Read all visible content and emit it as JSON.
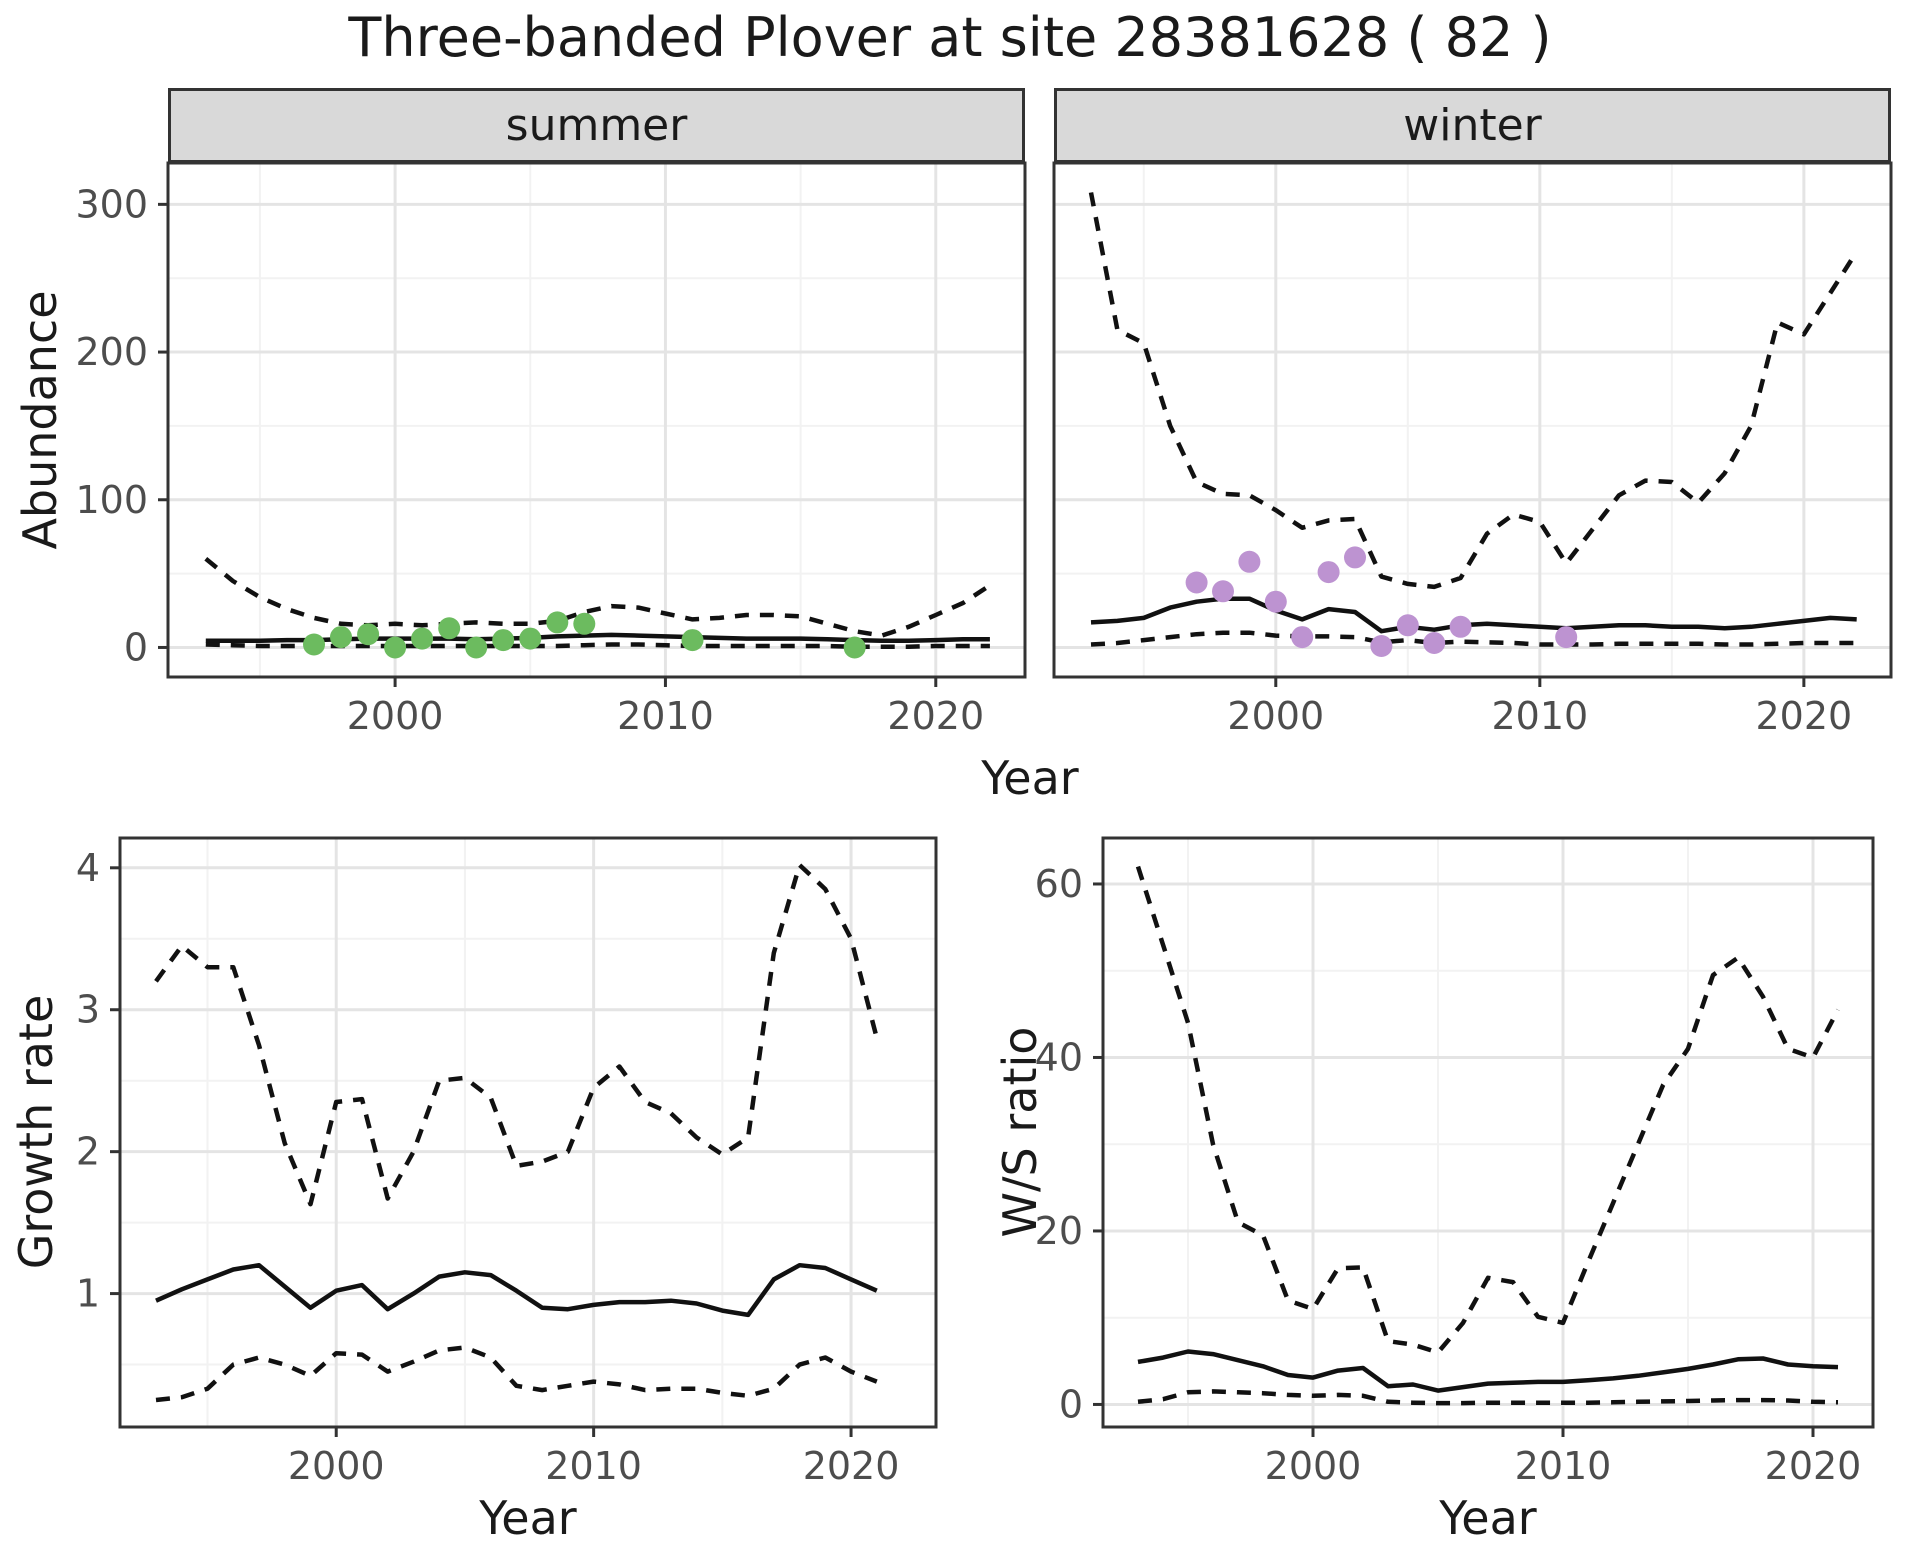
{
  "title": "Three-banded Plover at site 28381628 ( 82 )",
  "facets": {
    "summer": "summer",
    "winter": "winter"
  },
  "axes": {
    "abundance_ylabel": "Abundance",
    "top_xlabel": "Year",
    "growth_ylabel": "Growth rate",
    "growth_xlabel": "Year",
    "ws_ylabel": "W/S ratio",
    "ws_xlabel": "Year"
  },
  "style": {
    "accent_green": "#6cbb5f",
    "accent_purple": "#bd93d1",
    "line_color": "#111111",
    "grid_major": "#e4e4e4",
    "grid_minor": "#f2f2f2",
    "panel_border": "#333333",
    "strip_bg": "#d9d9d9",
    "tick_label_color": "#4d4d4d",
    "tick_mark_color": "#333333"
  },
  "chart_data": [
    {
      "id": "abundance-summer",
      "type": "line",
      "facet": "summer",
      "xlabel": "Year",
      "ylabel": "Abundance",
      "x_domain": [
        1991.6,
        2023.3
      ],
      "y_domain": [
        -20,
        328
      ],
      "x_ticks": [
        2000,
        2010,
        2020
      ],
      "x_minor": [
        1995,
        2005,
        2015
      ],
      "y_ticks": [
        0,
        100,
        200,
        300
      ],
      "y_minor": [
        50,
        150,
        250
      ],
      "show_y_labels": true,
      "grid": true,
      "years": [
        1993,
        1994,
        1995,
        1996,
        1997,
        1998,
        1999,
        2000,
        2001,
        2002,
        2003,
        2004,
        2005,
        2006,
        2007,
        2008,
        2009,
        2010,
        2011,
        2012,
        2013,
        2014,
        2015,
        2016,
        2017,
        2018,
        2019,
        2020,
        2021,
        2022
      ],
      "series": [
        {
          "name": "upper-95ci",
          "style": "dashed",
          "values": [
            60,
            45,
            34,
            26,
            20,
            16,
            15,
            16,
            15,
            16,
            17,
            16,
            16,
            18,
            24,
            28,
            27,
            23,
            19,
            20,
            22,
            22,
            21,
            16,
            11,
            8,
            14,
            22,
            30,
            42
          ]
        },
        {
          "name": "fitted-abundance",
          "style": "solid",
          "values": [
            4.5,
            4.5,
            4.5,
            5,
            5,
            5.5,
            6,
            6,
            6,
            6,
            5.5,
            6,
            6.5,
            7.5,
            8,
            8.5,
            8,
            7.5,
            7,
            6.5,
            6,
            6,
            6,
            5.5,
            5,
            4.5,
            4.5,
            5,
            5.5,
            5.5
          ]
        },
        {
          "name": "lower-95ci",
          "style": "dashed",
          "values": [
            2,
            1.5,
            1,
            1,
            1,
            1,
            1,
            1,
            1,
            1,
            1,
            1,
            1,
            1,
            1.5,
            2,
            2,
            1.5,
            1,
            1,
            1,
            1,
            1,
            1,
            0.5,
            0.5,
            0.5,
            1,
            1,
            1
          ]
        }
      ],
      "observations": {
        "name": "summer-counts",
        "color": "#6cbb5f",
        "points": [
          [
            1997,
            2
          ],
          [
            1998,
            7
          ],
          [
            1999,
            9
          ],
          [
            2000,
            0
          ],
          [
            2001,
            6
          ],
          [
            2002,
            13
          ],
          [
            2003,
            0
          ],
          [
            2004,
            5
          ],
          [
            2005,
            6
          ],
          [
            2006,
            17
          ],
          [
            2007,
            16
          ],
          [
            2011,
            5
          ],
          [
            2017,
            0
          ]
        ]
      }
    },
    {
      "id": "abundance-winter",
      "type": "line",
      "facet": "winter",
      "xlabel": "Year",
      "ylabel": "Abundance",
      "x_domain": [
        1991.6,
        2023.3
      ],
      "y_domain": [
        -20,
        328
      ],
      "x_ticks": [
        2000,
        2010,
        2020
      ],
      "x_minor": [
        1995,
        2005,
        2015
      ],
      "y_ticks": [
        0,
        100,
        200,
        300
      ],
      "y_minor": [
        50,
        150,
        250
      ],
      "show_y_labels": false,
      "grid": true,
      "years": [
        1993,
        1994,
        1995,
        1996,
        1997,
        1998,
        1999,
        2000,
        2001,
        2002,
        2003,
        2004,
        2005,
        2006,
        2007,
        2008,
        2009,
        2010,
        2011,
        2012,
        2013,
        2014,
        2015,
        2016,
        2017,
        2018,
        2019,
        2020,
        2021,
        2022
      ],
      "series": [
        {
          "name": "upper-95ci",
          "style": "dashed",
          "values": [
            308,
            215,
            206,
            150,
            112,
            104,
            103,
            93,
            81,
            86,
            87,
            48,
            43,
            41,
            47,
            77,
            90,
            85,
            57,
            80,
            103,
            113,
            112,
            98,
            118,
            150,
            220,
            212,
            240,
            268
          ]
        },
        {
          "name": "fitted-abundance",
          "style": "solid",
          "values": [
            17,
            18,
            20,
            27,
            31,
            33,
            33,
            25,
            19,
            26,
            24,
            11,
            14,
            12,
            15,
            16,
            15,
            14,
            13,
            14,
            15,
            15,
            14,
            14,
            13,
            14,
            16,
            18,
            20,
            19
          ]
        },
        {
          "name": "lower-95ci",
          "style": "dashed",
          "values": [
            2,
            3,
            5,
            7,
            9,
            10,
            10,
            8,
            7.5,
            7.5,
            7,
            3.5,
            5,
            3,
            4,
            3.5,
            3,
            2,
            2,
            2,
            2.5,
            2.5,
            2.5,
            2.5,
            2,
            2,
            2.5,
            3,
            3,
            3
          ]
        }
      ],
      "observations": {
        "name": "winter-counts",
        "color": "#bd93d1",
        "points": [
          [
            1997,
            44
          ],
          [
            1998,
            38
          ],
          [
            1999,
            58
          ],
          [
            2000,
            31
          ],
          [
            2001,
            7
          ],
          [
            2002,
            51
          ],
          [
            2003,
            61
          ],
          [
            2004,
            1
          ],
          [
            2005,
            15
          ],
          [
            2006,
            3
          ],
          [
            2007,
            14
          ],
          [
            2011,
            7
          ]
        ]
      }
    },
    {
      "id": "growth-rate",
      "type": "line",
      "facet": null,
      "xlabel": "Year",
      "ylabel": "Growth rate",
      "x_domain": [
        1991.6,
        2023.3
      ],
      "y_domain": [
        0.06,
        4.21
      ],
      "x_ticks": [
        2000,
        2010,
        2020
      ],
      "x_minor": [
        1995,
        2005,
        2015
      ],
      "y_ticks": [
        1,
        2,
        3,
        4
      ],
      "y_minor": [
        0.5,
        1.5,
        2.5,
        3.5
      ],
      "show_y_labels": true,
      "grid": true,
      "years": [
        1993,
        1994,
        1995,
        1996,
        1997,
        1998,
        1999,
        2000,
        2001,
        2002,
        2003,
        2004,
        2005,
        2006,
        2007,
        2008,
        2009,
        2010,
        2011,
        2012,
        2013,
        2014,
        2015,
        2016,
        2017,
        2018,
        2019,
        2020,
        2021
      ],
      "series": [
        {
          "name": "upper-95ci",
          "style": "dashed",
          "values": [
            3.2,
            3.45,
            3.3,
            3.3,
            2.75,
            2.06,
            1.63,
            2.35,
            2.37,
            1.67,
            2.0,
            2.5,
            2.52,
            2.38,
            1.9,
            1.93,
            2.0,
            2.45,
            2.6,
            2.35,
            2.27,
            2.1,
            1.98,
            2.1,
            3.4,
            4.02,
            3.85,
            3.5,
            2.8
          ]
        },
        {
          "name": "fitted-growth-rate",
          "style": "solid",
          "values": [
            0.95,
            1.03,
            1.1,
            1.17,
            1.2,
            1.05,
            0.9,
            1.02,
            1.06,
            0.89,
            1.0,
            1.12,
            1.15,
            1.13,
            1.02,
            0.9,
            0.89,
            0.92,
            0.94,
            0.94,
            0.95,
            0.93,
            0.88,
            0.85,
            1.1,
            1.2,
            1.18,
            1.1,
            1.02
          ]
        },
        {
          "name": "lower-95ci",
          "style": "dashed",
          "values": [
            0.25,
            0.27,
            0.33,
            0.5,
            0.55,
            0.5,
            0.42,
            0.58,
            0.57,
            0.45,
            0.52,
            0.6,
            0.62,
            0.55,
            0.35,
            0.32,
            0.35,
            0.38,
            0.36,
            0.32,
            0.33,
            0.33,
            0.3,
            0.28,
            0.33,
            0.5,
            0.55,
            0.45,
            0.38
          ]
        }
      ],
      "observations": null
    },
    {
      "id": "ws-ratio",
      "type": "line",
      "facet": null,
      "xlabel": "Year",
      "ylabel": "W/S ratio",
      "x_domain": [
        1991.6,
        2022.4
      ],
      "y_domain": [
        -2.6,
        65.3
      ],
      "x_ticks": [
        2000,
        2010,
        2020
      ],
      "x_minor": [
        1995,
        2005,
        2015
      ],
      "y_ticks": [
        0,
        20,
        40,
        60
      ],
      "y_minor": [
        10,
        30,
        50
      ],
      "show_y_labels": true,
      "grid": true,
      "years": [
        1993,
        1994,
        1995,
        1996,
        1997,
        1998,
        1999,
        2000,
        2001,
        2002,
        2003,
        2004,
        2005,
        2006,
        2007,
        2008,
        2009,
        2010,
        2011,
        2012,
        2013,
        2014,
        2015,
        2016,
        2017,
        2018,
        2019,
        2020,
        2021
      ],
      "series": [
        {
          "name": "upper-95ci",
          "style": "dashed",
          "values": [
            62,
            53,
            44,
            30,
            21,
            19.5,
            12,
            11,
            15.7,
            15.8,
            7.3,
            6.9,
            6,
            9.4,
            14.6,
            14.1,
            10.1,
            9.4,
            16.4,
            23.2,
            30,
            36.8,
            41,
            49.5,
            51.5,
            47,
            41,
            40,
            45.5
          ]
        },
        {
          "name": "fitted-ws-ratio",
          "style": "solid",
          "values": [
            4.9,
            5.4,
            6.1,
            5.8,
            5.1,
            4.4,
            3.4,
            3.1,
            3.9,
            4.2,
            2.1,
            2.3,
            1.6,
            2,
            2.4,
            2.5,
            2.6,
            2.6,
            2.8,
            3,
            3.3,
            3.7,
            4.1,
            4.6,
            5.2,
            5.3,
            4.6,
            4.4,
            4.3
          ]
        },
        {
          "name": "lower-95ci",
          "style": "dashed",
          "values": [
            0.3,
            0.6,
            1.4,
            1.5,
            1.4,
            1.3,
            1.1,
            1,
            1.1,
            1,
            0.3,
            0.2,
            0.15,
            0.15,
            0.2,
            0.2,
            0.2,
            0.2,
            0.2,
            0.25,
            0.3,
            0.35,
            0.4,
            0.45,
            0.5,
            0.5,
            0.45,
            0.3,
            0.25
          ]
        }
      ],
      "observations": null
    }
  ]
}
